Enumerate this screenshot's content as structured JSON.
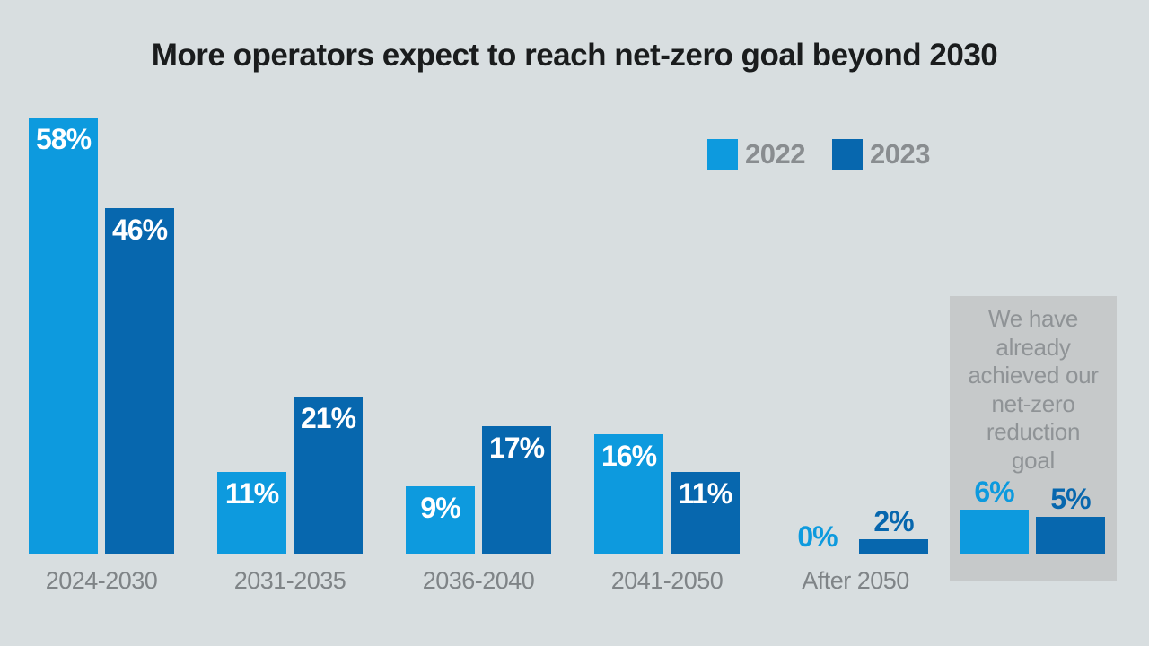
{
  "chart_data": {
    "type": "bar",
    "title": "More operators expect to reach net-zero goal beyond 2030",
    "value_suffix": "%",
    "categories": [
      "2024-2030",
      "2031-2035",
      "2036-2040",
      "2041-2050",
      "After 2050",
      "We have already achieved our net-zero reduction goal"
    ],
    "series": [
      {
        "name": "2022",
        "color": "#0d9ade",
        "values": [
          58,
          11,
          9,
          16,
          0,
          6
        ]
      },
      {
        "name": "2023",
        "color": "#0767ae",
        "values": [
          46,
          21,
          17,
          11,
          2,
          5
        ]
      }
    ],
    "annotation": {
      "text": "We have already achieved our net-zero reduction goal",
      "panel_background": "#c6c9ca",
      "applies_to_category_index": 5
    },
    "legend_position": "top-right",
    "ylim": [
      0,
      60
    ],
    "grid": false,
    "colors": {
      "background": "#d8dee0",
      "title_text": "#1a1c1d",
      "axis_text": "#7f8487",
      "panel_text": "#8f9396",
      "bar_label_inside": "#ffffff"
    }
  }
}
